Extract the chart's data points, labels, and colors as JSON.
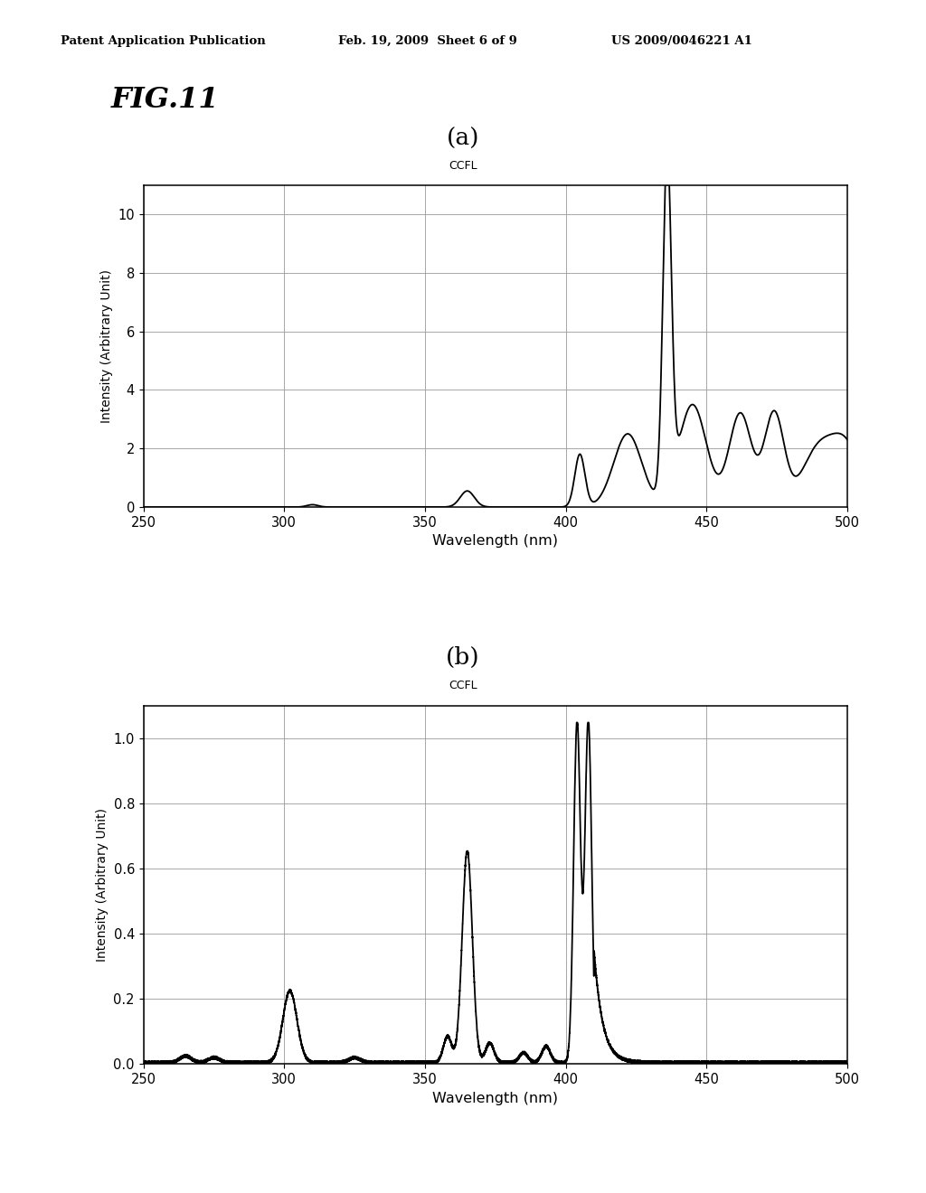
{
  "fig_title": "FIG.11",
  "patent_header_left": "Patent Application Publication",
  "patent_header_mid": "Feb. 19, 2009  Sheet 6 of 9",
  "patent_header_right": "US 2009/0046221 A1",
  "subplot_a_label": "(a)",
  "subplot_b_label": "(b)",
  "ccfl_label": "CCFL",
  "xlabel": "Wavelength (nm)",
  "ylabel": "Intensity (Arbitrary Unit)",
  "xlim": [
    250,
    500
  ],
  "a_ylim": [
    0,
    11
  ],
  "b_ylim": [
    0.0,
    1.1
  ],
  "a_yticks": [
    0,
    2,
    4,
    6,
    8,
    10
  ],
  "b_yticks": [
    0.0,
    0.2,
    0.4,
    0.6,
    0.8,
    1.0
  ],
  "xticks": [
    250,
    300,
    350,
    400,
    450,
    500
  ],
  "background_color": "#ffffff",
  "line_color": "#000000",
  "grid_color": "#999999"
}
